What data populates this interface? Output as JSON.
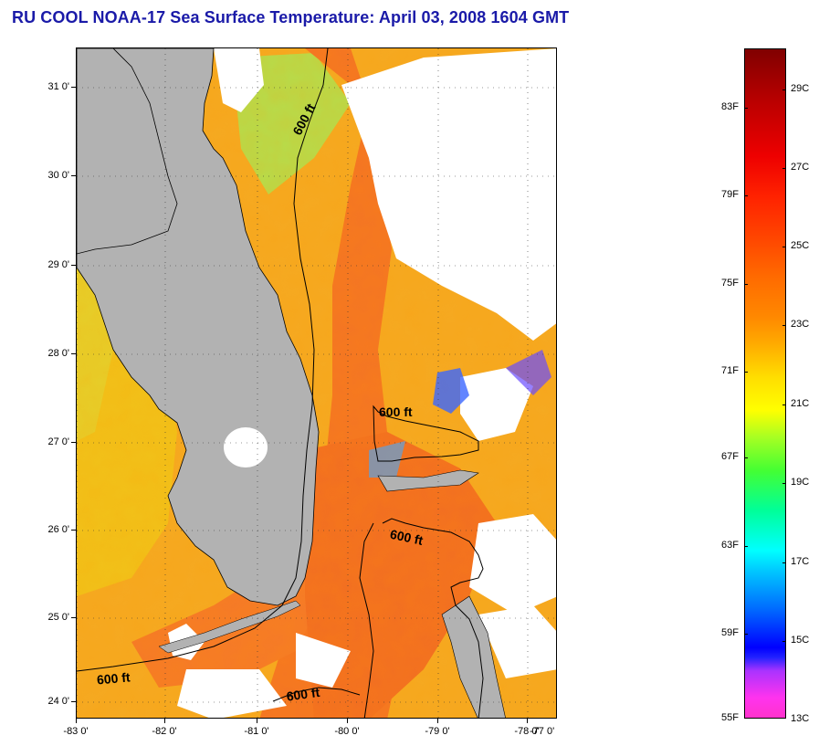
{
  "title": "RU COOL  NOAA-17  Sea Surface Temperature:  April 03, 2008 1604 GMT",
  "map": {
    "lat_labels": [
      "31 0'",
      "30 0'",
      "29 0'",
      "28 0'",
      "27 0'",
      "26 0'",
      "25 0'",
      "24 0'"
    ],
    "lon_labels": [
      "-83 0'",
      "-82 0'",
      "-81 0'",
      "-80 0'",
      "-79 0'",
      "-78 0'",
      "-77 0'"
    ],
    "contour_labels": [
      "600 ft",
      "600 ft",
      "600 ft",
      "600 ft",
      "600 ft"
    ],
    "colors": {
      "land": "#b2b2b2",
      "cloud": "#ffffff",
      "warm": "#f47a1e",
      "mid": "#f5b01c",
      "cool": "#c8e04a"
    }
  },
  "colorbar": {
    "fahrenheit_labels": [
      "83F",
      "79F",
      "75F",
      "71F",
      "67F",
      "63F",
      "59F",
      "55F"
    ],
    "celsius_labels": [
      "29C",
      "27C",
      "25C",
      "23C",
      "21C",
      "19C",
      "17C",
      "15C",
      "13C"
    ]
  }
}
